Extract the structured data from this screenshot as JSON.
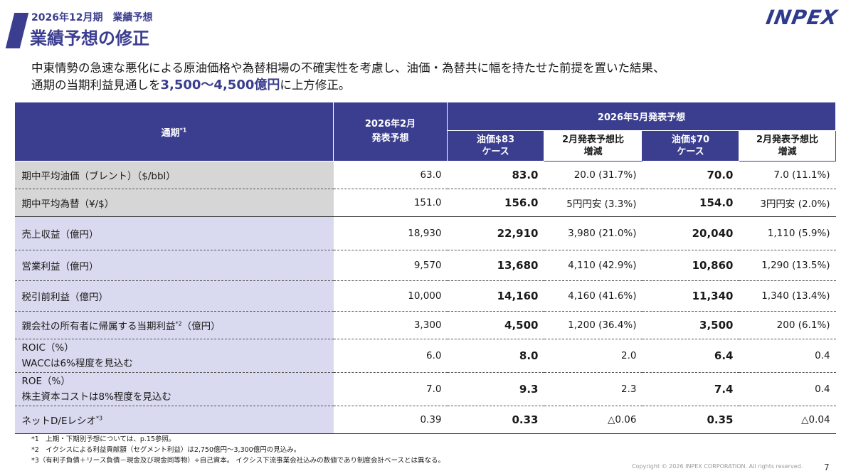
{
  "header": {
    "subtitle": "2026年12月期　業績予想",
    "title": "業績予想の修正",
    "logo": "INPEX"
  },
  "lead": {
    "line1": "中東情勢の急速な悪化による原油価格や為替相場の不確実性を考慮し、油価・為替共に幅を持たせた前提を置いた結果、",
    "line2_before": "通期の当期利益見通しを",
    "line2_highlight": "3,500～4,500億円",
    "line2_after": "に上方修正。"
  },
  "table": {
    "head": {
      "period": "通期",
      "period_note": "*1",
      "feb_forecast_1": "2026年2月",
      "feb_forecast_2": "発表予想",
      "may_forecast": "2026年5月発表予想",
      "case83_1": "油価$83",
      "case83_2": "ケース",
      "diff1_1": "2月発表予想比",
      "diff1_2": "増減",
      "case70_1": "油価$70",
      "case70_2": "ケース",
      "diff2_1": "2月発表予想比",
      "diff2_2": "増減"
    },
    "rows": [
      {
        "label": "期中平均油価（ブレント）（$/bbl）",
        "feb": "63.0",
        "c83": "83.0",
        "d1": "20.0 (31.7%)",
        "c70": "70.0",
        "d2": "7.0 (11.1%)"
      },
      {
        "label": "期中平均為替（¥/$）",
        "feb": "151.0",
        "c83": "156.0",
        "d1": "5円円安 (3.3%)",
        "c70": "154.0",
        "d2": "3円円安 (2.0%)"
      },
      {
        "label": "売上収益（億円）",
        "feb": "18,930",
        "c83": "22,910",
        "d1": "3,980 (21.0%)",
        "c70": "20,040",
        "d2": "1,110 (5.9%)"
      },
      {
        "label": "営業利益（億円）",
        "feb": "9,570",
        "c83": "13,680",
        "d1": "4,110 (42.9%)",
        "c70": "10,860",
        "d2": "1,290 (13.5%)"
      },
      {
        "label": "税引前利益（億円）",
        "feb": "10,000",
        "c83": "14,160",
        "d1": "4,160 (41.6%)",
        "c70": "11,340",
        "d2": "1,340 (13.4%)"
      },
      {
        "label": "親会社の所有者に帰属する当期利益",
        "note": "*2",
        "label_suffix": "（億円）",
        "feb": "3,300",
        "c83": "4,500",
        "d1": "1,200 (36.4%)",
        "c70": "3,500",
        "d2": "200 (6.1%)"
      },
      {
        "label": "ROIC（%）",
        "label2": "WACCは6%程度を見込む",
        "feb": "6.0",
        "c83": "8.0",
        "d1": "2.0",
        "c70": "6.4",
        "d2": "0.4"
      },
      {
        "label": "ROE（%）",
        "label2": "株主資本コストは8%程度を見込む",
        "feb": "7.0",
        "c83": "9.3",
        "d1": "2.3",
        "c70": "7.4",
        "d2": "0.4"
      },
      {
        "label": "ネットD/Eレシオ",
        "note": "*3",
        "feb": "0.39",
        "c83": "0.33",
        "d1": "△0.06",
        "c70": "0.35",
        "d2": "△0.04"
      }
    ]
  },
  "notes": [
    "*1　上期・下期別予想については、p.15参照。",
    "*2　イクシスによる利益貢献額（セグメント利益）は2,750億円～3,300億円の見込み。",
    "*3（有利子負債＋リース負債－現金及び現金同等物）÷自己資本。 イクシス下流事業会社込みの数値であり制度会計ベースとは異なる。"
  ],
  "footer": {
    "copyright": "Copyright © 2026 INPEX CORPORATION. All rights reserved.",
    "page": "7"
  }
}
